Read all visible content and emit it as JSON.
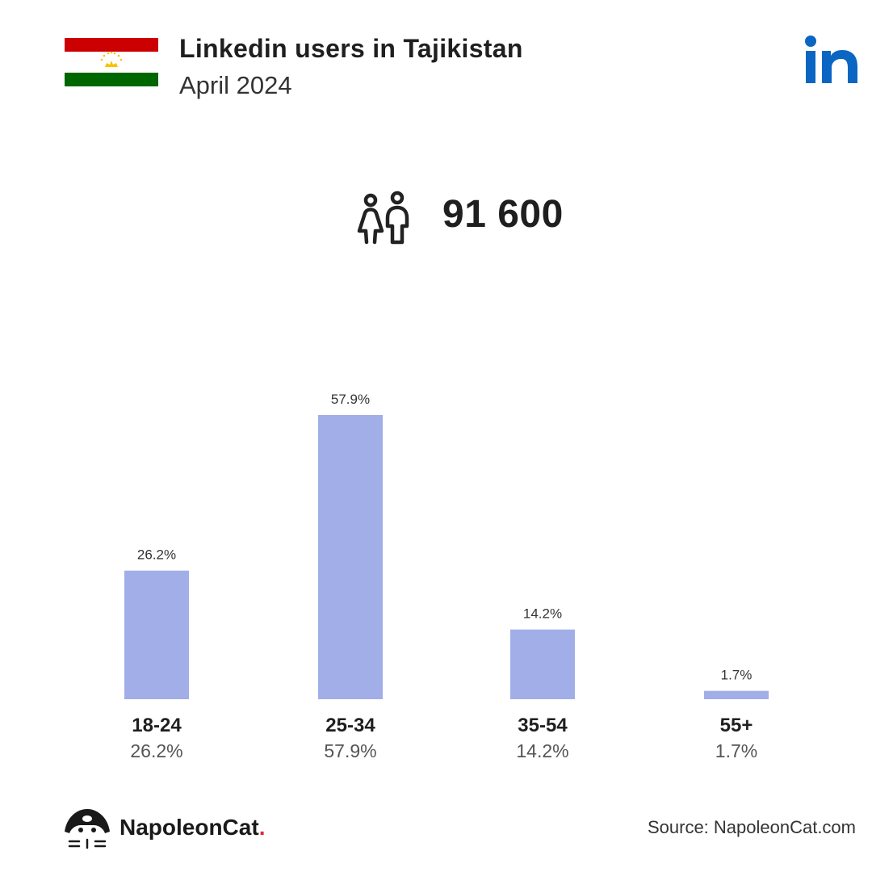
{
  "header": {
    "title": "Linkedin users in Tajikistan",
    "subtitle": "April 2024",
    "flag_colors": {
      "top": "#cc0000",
      "middle": "#ffffff",
      "bottom": "#006600",
      "emblem": "#f8c300"
    },
    "logo_icon": "linkedin-logo-icon",
    "logo_color": "#0a66c2"
  },
  "summary": {
    "icon": "users-icon",
    "total": "91 600"
  },
  "chart_data": {
    "type": "bar",
    "categories": [
      "18-24",
      "25-34",
      "35-54",
      "55+"
    ],
    "values": [
      26.2,
      57.9,
      14.2,
      1.7
    ],
    "value_labels": [
      "26.2%",
      "57.9%",
      "14.2%",
      "1.7%"
    ],
    "unit": "%",
    "bar_color": "#a2aee8",
    "grid": false,
    "legend": "none"
  },
  "footer": {
    "brand_name": "NapoleonCat",
    "brand_dot": ".",
    "brand_icon": "napoleoncat-logo-icon",
    "source": "Source: NapoleonCat.com"
  }
}
